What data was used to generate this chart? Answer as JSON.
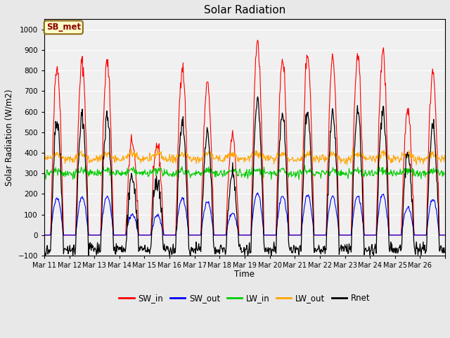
{
  "title": "Solar Radiation",
  "ylabel": "Solar Radiation (W/m2)",
  "xlabel": "Time",
  "ylim": [
    -100,
    1050
  ],
  "yticks": [
    -100,
    0,
    100,
    200,
    300,
    400,
    500,
    600,
    700,
    800,
    900,
    1000
  ],
  "x_tick_labels": [
    "Mar 11",
    "Mar 12",
    "Mar 13",
    "Mar 14",
    "Mar 15",
    "Mar 16",
    "Mar 17",
    "Mar 18",
    "Mar 19",
    "Mar 20",
    "Mar 21",
    "Mar 22",
    "Mar 23",
    "Mar 24",
    "Mar 25",
    "Mar 26"
  ],
  "annotation_text": "SB_met",
  "annotation_color": "#8B0000",
  "annotation_bg": "#FFFFCC",
  "annotation_border": "#8B6914",
  "colors": {
    "SW_in": "#FF0000",
    "SW_out": "#0000FF",
    "LW_in": "#00CC00",
    "LW_out": "#FFA500",
    "Rnet": "#000000"
  },
  "legend_labels": [
    "SW_in",
    "SW_out",
    "LW_in",
    "LW_out",
    "Rnet"
  ],
  "bg_color": "#E8E8E8",
  "plot_bg_color": "#F0F0F0",
  "n_days": 16,
  "day_peaks_SW": [
    820,
    840,
    840,
    460,
    440,
    820,
    730,
    480,
    940,
    860,
    880,
    860,
    870,
    890,
    610,
    800
  ],
  "SW_out_ratio": 0.22,
  "LW_in_base": 300,
  "LW_out_base": 370
}
